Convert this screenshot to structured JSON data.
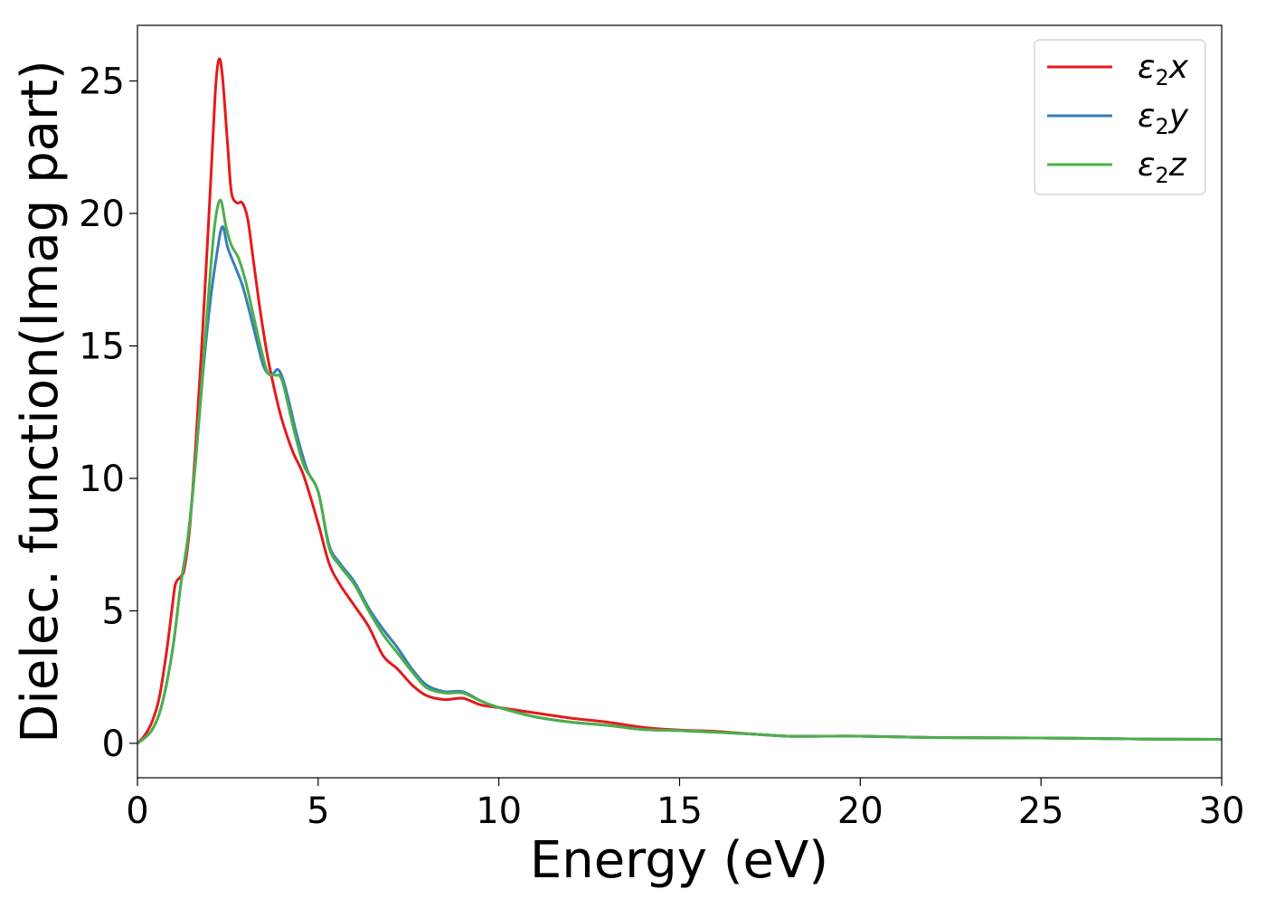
{
  "chart_data": {
    "type": "line",
    "title": "",
    "xlabel": "Energy (eV)",
    "ylabel": "Dielec. function(Imag part)",
    "xlim": [
      0,
      30
    ],
    "ylim": [
      -1.3,
      27.1
    ],
    "xticks": [
      0,
      5,
      10,
      15,
      20,
      25,
      30
    ],
    "yticks": [
      0,
      5,
      10,
      15,
      20,
      25
    ],
    "grid": false,
    "legend_position": "top-right",
    "series": [
      {
        "name": "ε₂x",
        "legend_base": "ε",
        "legend_sub": "2",
        "legend_var": "x",
        "color": "#e41a1c",
        "points": [
          [
            0,
            0
          ],
          [
            0.2,
            0.3
          ],
          [
            0.4,
            0.8
          ],
          [
            0.6,
            1.7
          ],
          [
            0.8,
            3.4
          ],
          [
            0.95,
            5
          ],
          [
            1.05,
            6
          ],
          [
            1.2,
            6.3
          ],
          [
            1.3,
            6.6
          ],
          [
            1.45,
            8.2
          ],
          [
            1.6,
            11
          ],
          [
            1.8,
            15.5
          ],
          [
            2.0,
            20.5
          ],
          [
            2.15,
            24.5
          ],
          [
            2.25,
            25.8
          ],
          [
            2.35,
            25.2
          ],
          [
            2.5,
            22.5
          ],
          [
            2.6,
            20.8
          ],
          [
            2.75,
            20.4
          ],
          [
            2.9,
            20.4
          ],
          [
            3.05,
            19.8
          ],
          [
            3.2,
            18.3
          ],
          [
            3.4,
            16.3
          ],
          [
            3.6,
            14.6
          ],
          [
            3.8,
            13.3
          ],
          [
            4.0,
            12.2
          ],
          [
            4.3,
            11
          ],
          [
            4.6,
            10.1
          ],
          [
            5.0,
            8.3
          ],
          [
            5.3,
            6.8
          ],
          [
            5.6,
            6
          ],
          [
            6.0,
            5.2
          ],
          [
            6.4,
            4.4
          ],
          [
            6.8,
            3.3
          ],
          [
            7.2,
            2.8
          ],
          [
            7.6,
            2.2
          ],
          [
            8.0,
            1.8
          ],
          [
            8.5,
            1.65
          ],
          [
            9.0,
            1.7
          ],
          [
            9.5,
            1.45
          ],
          [
            10.0,
            1.35
          ],
          [
            11.0,
            1.15
          ],
          [
            12.0,
            0.95
          ],
          [
            13.0,
            0.8
          ],
          [
            14.0,
            0.6
          ],
          [
            15.0,
            0.5
          ],
          [
            16.0,
            0.45
          ],
          [
            17.0,
            0.35
          ],
          [
            18.0,
            0.27
          ],
          [
            19.0,
            0.27
          ],
          [
            20.0,
            0.27
          ],
          [
            22.0,
            0.22
          ],
          [
            25.0,
            0.2
          ],
          [
            28.0,
            0.16
          ],
          [
            30.0,
            0.15
          ]
        ]
      },
      {
        "name": "ε₂y",
        "legend_base": "ε",
        "legend_sub": "2",
        "legend_var": "y",
        "color": "#377eb8",
        "points": [
          [
            0,
            0
          ],
          [
            0.2,
            0.2
          ],
          [
            0.4,
            0.5
          ],
          [
            0.6,
            1.1
          ],
          [
            0.8,
            2.2
          ],
          [
            1.0,
            3.8
          ],
          [
            1.2,
            6
          ],
          [
            1.4,
            7.8
          ],
          [
            1.6,
            10.5
          ],
          [
            1.8,
            13.8
          ],
          [
            2.0,
            16.5
          ],
          [
            2.2,
            18.5
          ],
          [
            2.35,
            19.5
          ],
          [
            2.5,
            18.7
          ],
          [
            2.7,
            18
          ],
          [
            2.9,
            17.3
          ],
          [
            3.1,
            16.3
          ],
          [
            3.3,
            15.2
          ],
          [
            3.5,
            14.2
          ],
          [
            3.7,
            13.9
          ],
          [
            3.9,
            14.1
          ],
          [
            4.1,
            13.4
          ],
          [
            4.4,
            11.7
          ],
          [
            4.7,
            10.3
          ],
          [
            5.0,
            9.5
          ],
          [
            5.3,
            7.5
          ],
          [
            5.6,
            6.8
          ],
          [
            6.0,
            6.1
          ],
          [
            6.4,
            5.1
          ],
          [
            6.8,
            4.3
          ],
          [
            7.2,
            3.6
          ],
          [
            7.6,
            2.8
          ],
          [
            8.0,
            2.2
          ],
          [
            8.5,
            1.95
          ],
          [
            9.0,
            1.95
          ],
          [
            9.5,
            1.6
          ],
          [
            10.0,
            1.35
          ],
          [
            11.0,
            1.0
          ],
          [
            12.0,
            0.8
          ],
          [
            13.0,
            0.68
          ],
          [
            14.0,
            0.52
          ],
          [
            15.0,
            0.48
          ],
          [
            16.0,
            0.42
          ],
          [
            17.0,
            0.35
          ],
          [
            18.0,
            0.27
          ],
          [
            19.0,
            0.27
          ],
          [
            20.0,
            0.27
          ],
          [
            22.0,
            0.22
          ],
          [
            25.0,
            0.2
          ],
          [
            28.0,
            0.16
          ],
          [
            30.0,
            0.15
          ]
        ]
      },
      {
        "name": "ε₂z",
        "legend_base": "ε",
        "legend_sub": "2",
        "legend_var": "z",
        "color": "#4daf4a",
        "points": [
          [
            0,
            0
          ],
          [
            0.2,
            0.2
          ],
          [
            0.4,
            0.5
          ],
          [
            0.6,
            1.1
          ],
          [
            0.8,
            2.2
          ],
          [
            1.0,
            3.8
          ],
          [
            1.2,
            6
          ],
          [
            1.4,
            7.8
          ],
          [
            1.6,
            10.5
          ],
          [
            1.8,
            14
          ],
          [
            2.0,
            17.5
          ],
          [
            2.15,
            19.7
          ],
          [
            2.3,
            20.5
          ],
          [
            2.45,
            19.5
          ],
          [
            2.6,
            18.8
          ],
          [
            2.8,
            18.3
          ],
          [
            3.0,
            17.4
          ],
          [
            3.2,
            16.2
          ],
          [
            3.4,
            15
          ],
          [
            3.6,
            14
          ],
          [
            3.8,
            13.9
          ],
          [
            4.0,
            13.7
          ],
          [
            4.3,
            12
          ],
          [
            4.6,
            10.5
          ],
          [
            5.0,
            9.5
          ],
          [
            5.3,
            7.4
          ],
          [
            5.6,
            6.7
          ],
          [
            6.0,
            6.0
          ],
          [
            6.4,
            5.0
          ],
          [
            6.8,
            4.1
          ],
          [
            7.2,
            3.4
          ],
          [
            7.6,
            2.7
          ],
          [
            8.0,
            2.1
          ],
          [
            8.5,
            1.9
          ],
          [
            9.0,
            1.9
          ],
          [
            9.5,
            1.6
          ],
          [
            10.0,
            1.35
          ],
          [
            11.0,
            1.0
          ],
          [
            12.0,
            0.8
          ],
          [
            13.0,
            0.68
          ],
          [
            14.0,
            0.52
          ],
          [
            15.0,
            0.48
          ],
          [
            16.0,
            0.42
          ],
          [
            17.0,
            0.35
          ],
          [
            18.0,
            0.27
          ],
          [
            19.0,
            0.27
          ],
          [
            20.0,
            0.27
          ],
          [
            22.0,
            0.22
          ],
          [
            25.0,
            0.2
          ],
          [
            28.0,
            0.16
          ],
          [
            30.0,
            0.15
          ]
        ]
      }
    ]
  }
}
